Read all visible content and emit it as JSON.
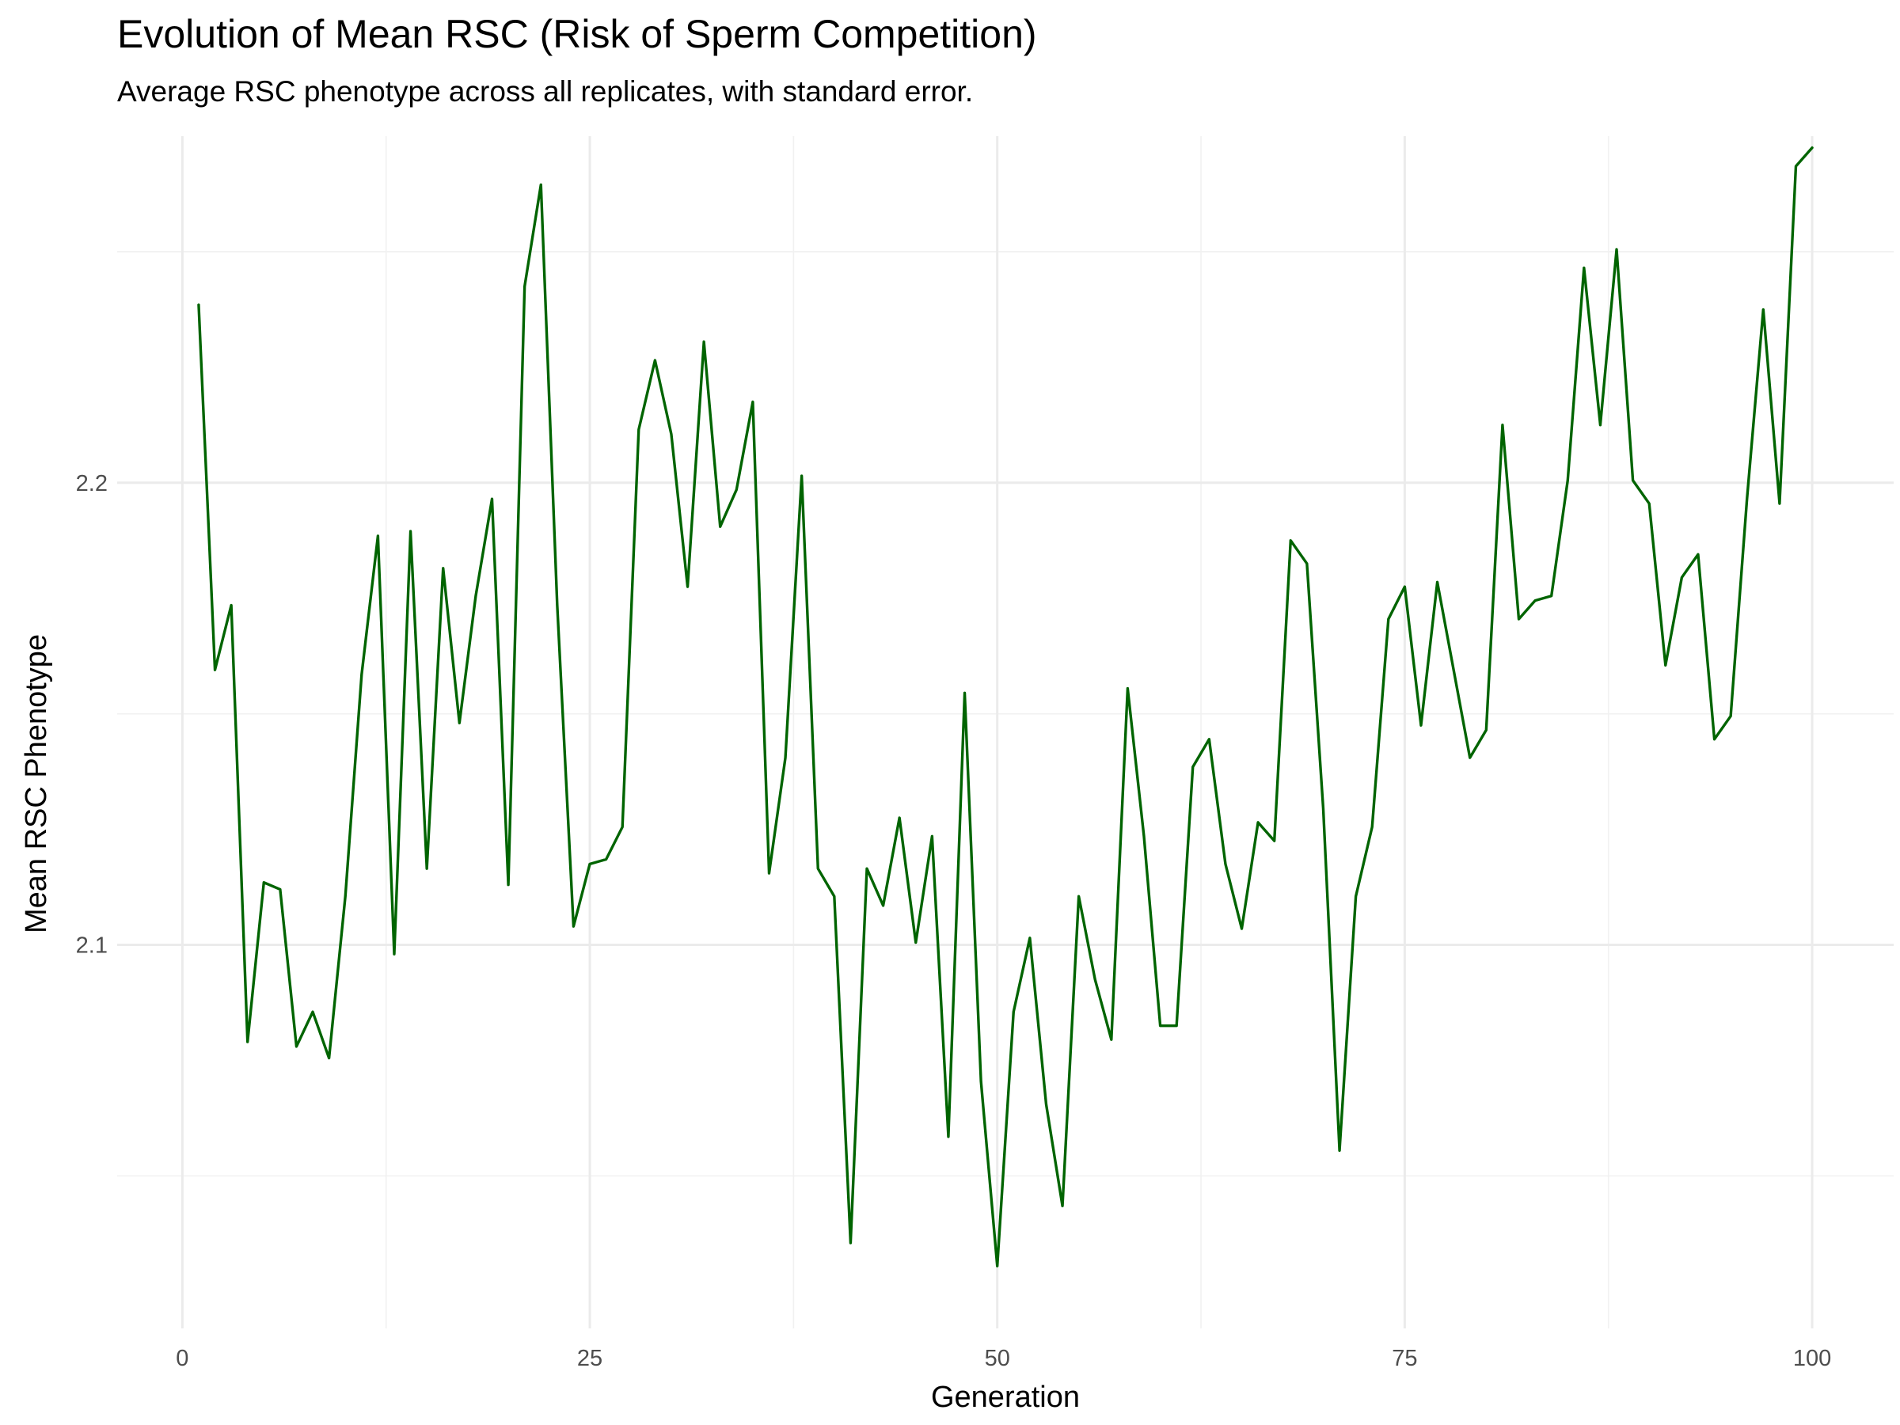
{
  "chart_data": {
    "type": "line",
    "title": "Evolution of Mean RSC (Risk of Sperm Competition)",
    "subtitle": "Average RSC phenotype across all replicates, with standard error.",
    "xlabel": "Generation",
    "ylabel": "Mean RSC Phenotype",
    "xlim": [
      -4,
      105
    ],
    "ylim": [
      2.017,
      2.275
    ],
    "x_ticks": [
      0,
      25,
      50,
      75,
      100
    ],
    "x_tick_labels": [
      "0",
      "25",
      "50",
      "75",
      "100"
    ],
    "y_ticks": [
      2.1,
      2.2
    ],
    "y_tick_labels": [
      "2.1",
      "2.2"
    ],
    "grid": true,
    "legend": "none",
    "line_color": "#006400",
    "series": [
      {
        "x": [
          1,
          2,
          3,
          4,
          5,
          6,
          7,
          8,
          9,
          10,
          11,
          12,
          13,
          14,
          15,
          16,
          17,
          18,
          19,
          20,
          21,
          22,
          23,
          24,
          25,
          26,
          27,
          28,
          29,
          30,
          31,
          32,
          33,
          34,
          35,
          36,
          37,
          38,
          39,
          40,
          41,
          42,
          43,
          44,
          45,
          46,
          47,
          48,
          49,
          50,
          51,
          52,
          53,
          54,
          55,
          56,
          57,
          58,
          59,
          60,
          61,
          62,
          63,
          64,
          65,
          66,
          67,
          68,
          69,
          70,
          71,
          72,
          73,
          74,
          75,
          76,
          77,
          78,
          79,
          80,
          81,
          82,
          83,
          84,
          85,
          86,
          87,
          88,
          89,
          90,
          91,
          92,
          93,
          94,
          95,
          96,
          97,
          98,
          99,
          100
        ],
        "y": [
          2.2385,
          2.1595,
          2.1735,
          2.079,
          2.1135,
          2.112,
          2.078,
          2.0855,
          2.0755,
          2.1105,
          2.1585,
          2.1885,
          2.098,
          2.1895,
          2.1165,
          2.1815,
          2.148,
          2.1755,
          2.1965,
          2.113,
          2.2425,
          2.2645,
          2.1735,
          2.104,
          2.1175,
          2.1185,
          2.1255,
          2.2115,
          2.2265,
          2.2105,
          2.1775,
          2.2305,
          2.1905,
          2.1985,
          2.2175,
          2.1155,
          2.1405,
          2.2015,
          2.1165,
          2.1105,
          2.0355,
          2.1165,
          2.1085,
          2.1275,
          2.1005,
          2.1235,
          2.0585,
          2.1545,
          2.0705,
          2.0305,
          2.0855,
          2.1015,
          2.0655,
          2.0435,
          2.1105,
          2.0925,
          2.0795,
          2.1555,
          2.1235,
          2.0825,
          2.0825,
          2.1385,
          2.1445,
          2.1175,
          2.1035,
          2.1265,
          2.1225,
          2.1875,
          2.1825,
          2.1295,
          2.0555,
          2.1105,
          2.1255,
          2.1705,
          2.1775,
          2.1475,
          2.1785,
          2.1595,
          2.1405,
          2.1465,
          2.2125,
          2.1705,
          2.1745,
          2.1755,
          2.2005,
          2.2465,
          2.2125,
          2.2505,
          2.2005,
          2.1955,
          2.1605,
          2.1795,
          2.1845,
          2.1445,
          2.1495,
          2.1965,
          2.2375,
          2.1955,
          2.2685,
          2.2725
        ]
      }
    ]
  }
}
